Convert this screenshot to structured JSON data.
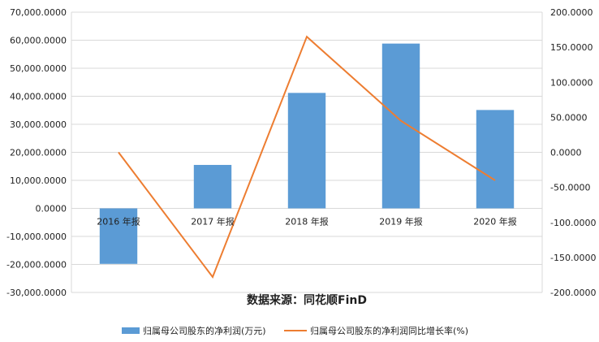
{
  "chart_data": {
    "type": "bar+line",
    "categories": [
      "2016 年报",
      "2017 年报",
      "2018 年报",
      "2019 年报",
      "2020 年报"
    ],
    "series": [
      {
        "name": "归属母公司股东的净利润(万元)",
        "type": "bar",
        "axis": "left",
        "color": "#5b9bd5",
        "values": [
          -19800,
          15500,
          41200,
          58800,
          35100
        ]
      },
      {
        "name": "归属母公司股东的净利润同比增长率(%)",
        "type": "line",
        "axis": "right",
        "color": "#ed7d31",
        "values": [
          0,
          -178,
          165,
          45,
          -40
        ]
      }
    ],
    "y_left": {
      "ylim": [
        -30000,
        70000
      ],
      "ticks": [
        "70,000.0000",
        "60,000.0000",
        "50,000.0000",
        "40,000.0000",
        "30,000.0000",
        "20,000.0000",
        "10,000.0000",
        "0.0000",
        "-10,000.0000",
        "-20,000.0000",
        "-30,000.0000"
      ]
    },
    "y_right": {
      "ylim": [
        -200,
        200
      ],
      "ticks": [
        "200.0000",
        "150.0000",
        "100.0000",
        "50.0000",
        "0.0000",
        "-50.0000",
        "-100.0000",
        "-150.0000",
        "-200.0000"
      ]
    },
    "grid": true,
    "legend": "bottom",
    "source_note": "数据来源：同花顺FinD"
  }
}
